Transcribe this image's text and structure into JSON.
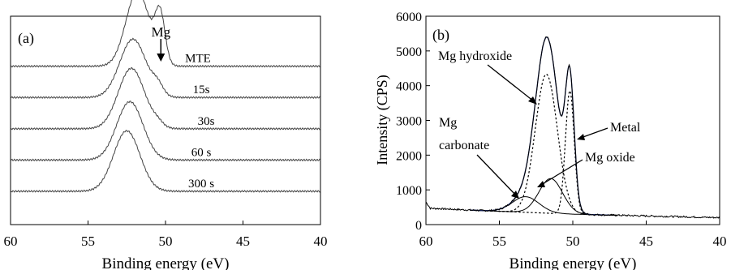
{
  "chart_data": [
    {
      "panel_label": "(a)",
      "type": "line",
      "xlabel": "Binding energy (eV)",
      "ylabel": "",
      "xlim": [
        60,
        40
      ],
      "x_ticks": [
        "60",
        "55",
        "50",
        "45",
        "40"
      ],
      "annotation": "Mg",
      "annotation_x": 50.3,
      "series": [
        {
          "label": "MTE",
          "offset": 0.76,
          "peak_scale": 1.0,
          "peaks": [
            {
              "c": 51.8,
              "a": 0.36,
              "w": 0.75
            },
            {
              "c": 50.35,
              "a": 0.23,
              "w": 0.32
            }
          ]
        },
        {
          "label": "15s",
          "offset": 0.61,
          "peak_scale": 1.0,
          "peaks": [
            {
              "c": 52.1,
              "a": 0.28,
              "w": 0.85
            },
            {
              "c": 50.5,
              "a": 0.045,
              "w": 0.35
            }
          ]
        },
        {
          "label": "30s",
          "offset": 0.46,
          "peak_scale": 1.0,
          "peaks": [
            {
              "c": 52.2,
              "a": 0.29,
              "w": 0.85
            },
            {
              "c": 50.5,
              "a": 0.02,
              "w": 0.35
            }
          ]
        },
        {
          "label": "60 s",
          "offset": 0.31,
          "peak_scale": 1.0,
          "peaks": [
            {
              "c": 52.3,
              "a": 0.28,
              "w": 0.85
            }
          ]
        },
        {
          "label": "300 s",
          "offset": 0.16,
          "peak_scale": 1.0,
          "peaks": [
            {
              "c": 52.5,
              "a": 0.29,
              "w": 0.85
            }
          ]
        }
      ]
    },
    {
      "panel_label": "(b)",
      "type": "line",
      "xlabel": "Binding energy (eV)",
      "ylabel": "Intensity (CPS)",
      "xlim": [
        60,
        40
      ],
      "ylim": [
        0,
        6000
      ],
      "x_ticks": [
        "60",
        "55",
        "50",
        "45",
        "40"
      ],
      "y_ticks": [
        "0",
        "1000",
        "2000",
        "3000",
        "4000",
        "5000",
        "6000"
      ],
      "components": [
        {
          "name": "Mg hydroxide",
          "center": 51.8,
          "height": 4000,
          "width": 0.75
        },
        {
          "name": "Metal",
          "center": 50.2,
          "height": 3550,
          "width": 0.3
        },
        {
          "name": "Mg oxide",
          "center": 51.5,
          "height": 1000,
          "width": 0.8
        },
        {
          "name": "Mg carbonate",
          "center": 53.2,
          "height": 450,
          "width": 0.9
        }
      ],
      "background": [
        [
          60,
          650
        ],
        [
          59.7,
          470
        ],
        [
          56,
          400
        ],
        [
          50,
          300
        ],
        [
          40,
          200
        ]
      ],
      "annotations": {
        "hydroxide": "Mg hydroxide",
        "carbonate_line1": "Mg",
        "carbonate_line2": "carbonate",
        "metal": "Metal",
        "oxide": "Mg oxide"
      }
    }
  ]
}
